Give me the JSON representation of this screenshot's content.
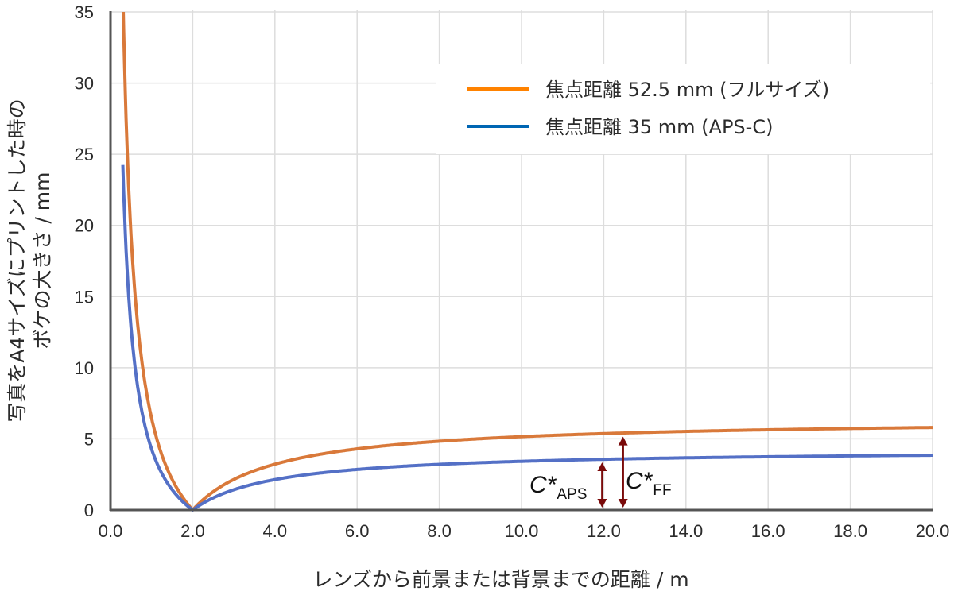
{
  "chart_data": {
    "type": "line",
    "title": "",
    "xlabel": "レンズから前景または背景までの距離 / m",
    "ylabel_line1": "写真をA4サイズにプリントした時の",
    "ylabel_line2": "ボケの大きさ / mm",
    "xlim": [
      0,
      20
    ],
    "ylim": [
      0,
      35
    ],
    "x_ticks": [
      "0.0",
      "2.0",
      "4.0",
      "6.0",
      "8.0",
      "10.0",
      "12.0",
      "14.0",
      "16.0",
      "18.0",
      "20.0"
    ],
    "y_ticks": [
      "0",
      "5",
      "10",
      "15",
      "20",
      "25",
      "30",
      "35"
    ],
    "grid": true,
    "legend_position": "upper right",
    "series": [
      {
        "name": "焦点距離 52.5 mm (フルサイズ)",
        "color": "#D9793A",
        "legend_color": "#FF8200",
        "x": [
          0.3,
          0.35,
          0.4,
          0.5,
          0.6,
          0.7,
          0.8,
          0.9,
          1.0,
          1.2,
          1.4,
          1.6,
          1.8,
          2.0,
          2.2,
          2.5,
          3.0,
          3.5,
          4.0,
          5.0,
          6.0,
          7.0,
          8.0,
          9.0,
          10.0,
          11.0,
          12.0,
          13.0,
          14.0,
          15.0,
          16.0,
          17.0,
          18.0,
          19.0,
          20.0
        ],
        "y": [
          36.5,
          30.4,
          25.8,
          19.3,
          15.0,
          12.0,
          9.7,
          7.9,
          6.44,
          4.29,
          2.76,
          1.61,
          0.72,
          0.0,
          0.59,
          1.29,
          2.15,
          2.76,
          3.22,
          3.86,
          4.29,
          4.6,
          4.83,
          5.01,
          5.15,
          5.27,
          5.37,
          5.45,
          5.52,
          5.58,
          5.64,
          5.68,
          5.72,
          5.76,
          5.8
        ]
      },
      {
        "name": "焦点距離 35 mm (APS-C)",
        "color": "#5470C6",
        "legend_color": "#0066B3",
        "x": [
          0.3,
          0.35,
          0.4,
          0.5,
          0.6,
          0.7,
          0.8,
          0.9,
          1.0,
          1.2,
          1.4,
          1.6,
          1.8,
          2.0,
          2.2,
          2.5,
          3.0,
          3.5,
          4.0,
          5.0,
          6.0,
          7.0,
          8.0,
          9.0,
          10.0,
          11.0,
          12.0,
          13.0,
          14.0,
          15.0,
          16.0,
          17.0,
          18.0,
          19.0,
          20.0
        ],
        "y": [
          24.3,
          20.2,
          17.1,
          12.8,
          10.0,
          7.97,
          6.43,
          5.23,
          4.28,
          2.85,
          1.83,
          1.07,
          0.48,
          0.0,
          0.39,
          0.86,
          1.43,
          1.83,
          2.14,
          2.57,
          2.85,
          3.06,
          3.21,
          3.33,
          3.42,
          3.5,
          3.57,
          3.62,
          3.67,
          3.71,
          3.75,
          3.78,
          3.81,
          3.83,
          3.85
        ]
      }
    ],
    "annotations": [
      {
        "label_main": "C*",
        "label_sub": "APS",
        "x": 12.0,
        "y_from": 0,
        "y_to": 3.57,
        "color": "#7A0A0A"
      },
      {
        "label_main": "C*",
        "label_sub": "FF",
        "x": 12.45,
        "y_from": 0,
        "y_to": 5.38,
        "color": "#7A0A0A"
      }
    ]
  }
}
